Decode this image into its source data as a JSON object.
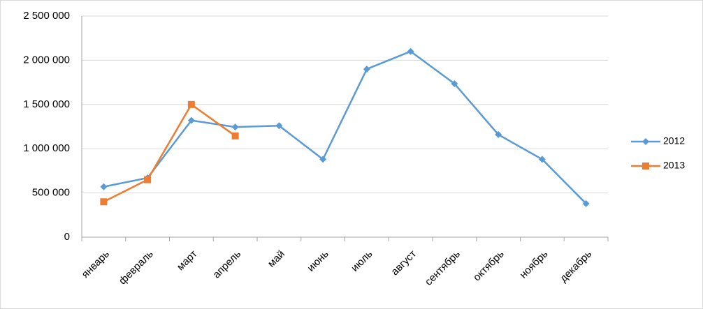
{
  "chart_data": {
    "type": "line",
    "categories": [
      "январь",
      "февраль",
      "март",
      "апрель",
      "май",
      "июнь",
      "июль",
      "август",
      "сентябрь",
      "октябрь",
      "ноябрь",
      "декабрь"
    ],
    "series": [
      {
        "name": "2012",
        "color": "#5b9bd5",
        "marker": "diamond",
        "values": [
          570000,
          670000,
          1320000,
          1245000,
          1260000,
          880000,
          1900000,
          2100000,
          1735000,
          1160000,
          880000,
          380000
        ]
      },
      {
        "name": "2013",
        "color": "#ed7d31",
        "marker": "square",
        "values": [
          400000,
          650000,
          1500000,
          1145000,
          null,
          null,
          null,
          null,
          null,
          null,
          null,
          null
        ]
      }
    ],
    "ylim": [
      0,
      2500000
    ],
    "yticks": [
      0,
      {
        "value": 500000,
        "label": "500 000"
      },
      {
        "value": 1000000,
        "label": "1 000 000"
      },
      {
        "value": 1500000,
        "label": "1 500 000"
      },
      {
        "value": 2000000,
        "label": "2 000 000"
      },
      {
        "value": 2500000,
        "label": "2 500 000"
      }
    ],
    "grid": true,
    "legend": "right"
  }
}
